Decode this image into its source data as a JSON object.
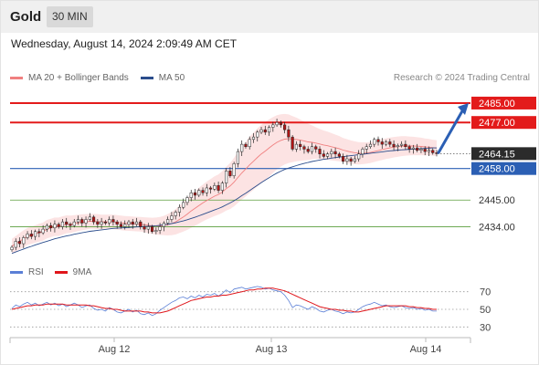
{
  "header": {
    "title": "Gold",
    "timeframe": "30 MIN",
    "datetime": "Wednesday, August 14, 2024 2:09:49 AM CET",
    "copyright": "Research © 2024 Trading Central"
  },
  "legend": {
    "items": [
      {
        "label": "MA 20 + Bollinger Bands",
        "color": "#f08080"
      },
      {
        "label": "MA 50",
        "color": "#2b4d8c"
      }
    ]
  },
  "rsi_legend": {
    "items": [
      {
        "label": "RSI",
        "color": "#5b7fd6"
      },
      {
        "label": "9MA",
        "color": "#e0161b"
      }
    ]
  },
  "colors": {
    "resistance": "#e31b1b",
    "support": "#5a9e3c",
    "pivot": "#2b5fb4",
    "last_price": "#2b2b2b",
    "arrow": "#2b5fb4",
    "up_candle": "#ffffff",
    "down_candle": "#b01515",
    "bollinger_fill": "#fbdada"
  },
  "chart_data": [
    {
      "type": "candlestick",
      "title": "Gold",
      "timeframe": "30 MIN",
      "x_ticks": [
        "Aug 12",
        "Aug 13",
        "Aug 14"
      ],
      "ylim": [
        2421,
        2491
      ],
      "levels": [
        {
          "value": 2485.0,
          "label": "2485.00",
          "kind": "resistance"
        },
        {
          "value": 2477.0,
          "label": "2477.00",
          "kind": "resistance"
        },
        {
          "value": 2464.15,
          "label": "2464.15",
          "kind": "last"
        },
        {
          "value": 2458.0,
          "label": "2458.00",
          "kind": "pivot"
        },
        {
          "value": 2445.0,
          "label": "2445.00",
          "kind": "support"
        },
        {
          "value": 2434.0,
          "label": "2434.00",
          "kind": "support"
        }
      ],
      "close": [
        2425.5,
        2428,
        2427,
        2429.5,
        2431,
        2430,
        2432,
        2431.5,
        2433,
        2434.5,
        2433.5,
        2435,
        2434,
        2436,
        2435,
        2434.5,
        2436,
        2437,
        2435.5,
        2437,
        2438,
        2436,
        2435,
        2436,
        2435.5,
        2437,
        2436,
        2435,
        2434,
        2435,
        2436,
        2435,
        2436,
        2434,
        2433,
        2434,
        2432,
        2432.5,
        2434,
        2435.5,
        2437,
        2438.5,
        2440,
        2442,
        2444,
        2446,
        2448,
        2447,
        2449,
        2448,
        2450,
        2449.5,
        2451,
        2449,
        2452,
        2457,
        2455,
        2460,
        2465,
        2468,
        2467,
        2470,
        2471,
        2473,
        2474,
        2473,
        2475,
        2476,
        2477,
        2476,
        2474,
        2471,
        2466,
        2468,
        2467,
        2466,
        2465,
        2467,
        2466,
        2464,
        2463,
        2464,
        2465,
        2464,
        2463,
        2461,
        2462,
        2461,
        2462,
        2464,
        2466,
        2467,
        2468,
        2470,
        2469,
        2468,
        2469,
        2468,
        2467,
        2467.5,
        2468,
        2467,
        2466,
        2466.5,
        2465.5,
        2466,
        2465,
        2465.5,
        2464.5,
        2464.15
      ],
      "ma20": [
        2426,
        2427,
        2428,
        2429,
        2430,
        2430.5,
        2431,
        2431.5,
        2432,
        2433,
        2433.5,
        2434,
        2434,
        2434.5,
        2435,
        2435,
        2435.3,
        2435.6,
        2435.8,
        2436,
        2436.2,
        2436.2,
        2436.1,
        2436,
        2436,
        2436,
        2436,
        2435.8,
        2435.6,
        2435.4,
        2435.3,
        2435.2,
        2435.1,
        2435,
        2434.8,
        2434.6,
        2434.4,
        2434.3,
        2434.3,
        2434.5,
        2434.8,
        2435.3,
        2436,
        2437,
        2438,
        2439.2,
        2440.5,
        2441.6,
        2442.7,
        2443.8,
        2444.8,
        2445.7,
        2446.6,
        2447.3,
        2448.3,
        2449.7,
        2450.8,
        2452.4,
        2454.3,
        2456.2,
        2457.8,
        2459.5,
        2461,
        2462.6,
        2464,
        2465.2,
        2466.5,
        2467.7,
        2468.8,
        2469.6,
        2470.1,
        2470.3,
        2470.1,
        2470,
        2469.7,
        2469.4,
        2469,
        2468.8,
        2468.5,
        2468.1,
        2467.7,
        2467.4,
        2467,
        2466.6,
        2466.2,
        2465.6,
        2465.2,
        2464.8,
        2464.5,
        2464.3,
        2464.3,
        2464.4,
        2464.6,
        2465,
        2465.4,
        2465.8,
        2466.2,
        2466.5,
        2466.8,
        2467,
        2467.2,
        2467.3,
        2467.3,
        2467.3,
        2467.2,
        2467.1,
        2466.9,
        2466.8,
        2466.6,
        2466.4
      ],
      "ma50": [
        2423,
        2423.6,
        2424.2,
        2424.8,
        2425.4,
        2425.9,
        2426.5,
        2427,
        2427.5,
        2428,
        2428.5,
        2429,
        2429.4,
        2429.8,
        2430.2,
        2430.5,
        2430.9,
        2431.2,
        2431.5,
        2431.8,
        2432.1,
        2432.3,
        2432.5,
        2432.7,
        2432.9,
        2433.1,
        2433.3,
        2433.4,
        2433.5,
        2433.6,
        2433.7,
        2433.8,
        2433.9,
        2434,
        2434.1,
        2434.2,
        2434.3,
        2434.4,
        2434.6,
        2434.8,
        2435,
        2435.3,
        2435.6,
        2436,
        2436.4,
        2436.9,
        2437.4,
        2437.9,
        2438.5,
        2439.1,
        2439.7,
        2440.3,
        2440.9,
        2441.5,
        2442.2,
        2443,
        2443.8,
        2444.7,
        2445.7,
        2446.8,
        2447.8,
        2448.9,
        2450,
        2451.1,
        2452.2,
        2453.2,
        2454.2,
        2455.2,
        2456.1,
        2456.9,
        2457.6,
        2458.2,
        2458.7,
        2459.2,
        2459.7,
        2460.1,
        2460.5,
        2460.9,
        2461.2,
        2461.5,
        2461.8,
        2462,
        2462.3,
        2462.5,
        2462.7,
        2462.9,
        2463.1,
        2463.3,
        2463.5,
        2463.7,
        2463.9,
        2464.1,
        2464.3,
        2464.5,
        2464.7,
        2464.9,
        2465.1,
        2465.3,
        2465.4,
        2465.6,
        2465.7,
        2465.8,
        2465.9,
        2466,
        2466.1,
        2466.2,
        2466.3,
        2466.4,
        2466.5,
        2466.5
      ],
      "bollinger_width": [
        3,
        3.2,
        3.4,
        3.5,
        3.5,
        3.6,
        3.6,
        3.7,
        3.7,
        3.8,
        3.8,
        3.8,
        3.8,
        3.8,
        3.7,
        3.6,
        3.5,
        3.4,
        3.3,
        3.2,
        3.1,
        3.1,
        3.1,
        3,
        3,
        3,
        3,
        3,
        3,
        3,
        3,
        3,
        3,
        3,
        3.1,
        3.2,
        3.3,
        3.5,
        3.7,
        4,
        4.4,
        4.8,
        5.2,
        5.6,
        6,
        6.5,
        7,
        7.2,
        7.4,
        7.6,
        7.8,
        8,
        8.2,
        8.3,
        8.6,
        9,
        9.5,
        10,
        10.5,
        11,
        11.3,
        11.6,
        11.8,
        12,
        12,
        12,
        11.8,
        11.5,
        11.2,
        10.8,
        10.4,
        10,
        9.5,
        9,
        8.5,
        8,
        7.5,
        7,
        6.5,
        6.2,
        6,
        5.8,
        5.6,
        5.4,
        5.2,
        5,
        4.9,
        4.8,
        4.7,
        4.6,
        4.5,
        4.4,
        4.3,
        4.3,
        4.3,
        4.3,
        4.3,
        4.3,
        4.2,
        4.2,
        4.1,
        4,
        3.9,
        3.8,
        3.7,
        3.6,
        3.5,
        3.4,
        3.3,
        3.3
      ],
      "projection_arrow": {
        "from": 2464.15,
        "to": 2485.0
      }
    },
    {
      "type": "line",
      "title": "RSI",
      "x_ticks": [
        "Aug 12",
        "Aug 13",
        "Aug 14"
      ],
      "ylim": [
        20,
        80
      ],
      "y_ticks": [
        70,
        50,
        30
      ],
      "series": [
        {
          "name": "RSI",
          "values": [
            51,
            55,
            53,
            56,
            58,
            55,
            57,
            54,
            56,
            58,
            55,
            57,
            54,
            56,
            53,
            55,
            57,
            55,
            52,
            54,
            55,
            51,
            49,
            50,
            48,
            52,
            50,
            47,
            46,
            48,
            50,
            47,
            49,
            45,
            44,
            46,
            43,
            45,
            49,
            52,
            55,
            58,
            60,
            63,
            64,
            62,
            65,
            63,
            66,
            64,
            67,
            66,
            68,
            65,
            68,
            72,
            69,
            73,
            74,
            75,
            73,
            74,
            75,
            76,
            75,
            73,
            74,
            72,
            71,
            70,
            66,
            60,
            52,
            55,
            54,
            52,
            50,
            53,
            51,
            48,
            47,
            49,
            50,
            48,
            47,
            45,
            47,
            46,
            47,
            50,
            53,
            55,
            56,
            58,
            56,
            54,
            55,
            53,
            52,
            53,
            54,
            52,
            51,
            52,
            50,
            51,
            49,
            50,
            48,
            48
          ]
        },
        {
          "name": "9MA",
          "values": [
            50,
            51,
            52,
            53,
            54,
            54,
            55,
            55,
            55,
            56,
            56,
            56,
            56,
            56,
            55,
            55,
            55,
            55,
            55,
            55,
            54,
            54,
            53,
            52,
            51,
            51,
            50,
            50,
            49,
            48,
            48,
            48,
            48,
            48,
            47,
            47,
            46,
            46,
            46,
            47,
            48,
            50,
            52,
            54,
            56,
            58,
            60,
            61,
            62,
            63,
            64,
            64,
            65,
            65,
            66,
            66,
            67,
            68,
            69,
            70,
            71,
            72,
            72,
            73,
            73,
            74,
            74,
            74,
            73,
            72,
            71,
            69,
            67,
            65,
            63,
            61,
            59,
            57,
            55,
            53,
            52,
            51,
            50,
            50,
            49,
            49,
            48,
            48,
            47,
            47,
            48,
            49,
            50,
            51,
            52,
            53,
            54,
            54,
            54,
            54,
            54,
            54,
            53,
            53,
            52,
            52,
            51,
            51,
            50,
            50
          ]
        }
      ]
    }
  ]
}
